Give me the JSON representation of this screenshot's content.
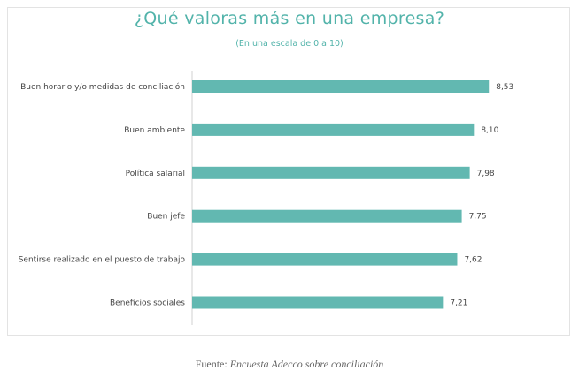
{
  "chart_data": {
    "type": "bar",
    "orientation": "horizontal",
    "title": "¿Qué valoras más en una empresa?",
    "subtitle": "(En una escala de 0 a 10)",
    "categories": [
      "Buen horario y/o medidas de conciliación",
      "Buen ambiente",
      "Política salarial",
      "Buen jefe",
      "Sentirse realizado en el puesto de trabajo",
      "Beneficios sociales"
    ],
    "values": [
      8.53,
      8.1,
      7.98,
      7.75,
      7.62,
      7.21
    ],
    "value_labels": [
      "8,53",
      "8,10",
      "7,98",
      "7,75",
      "7,62",
      "7,21"
    ],
    "xlim": [
      0,
      10
    ],
    "xlabel": "",
    "ylabel": "",
    "grid": false,
    "bar_color": "#62b8b1"
  },
  "colors": {
    "title": "#52b3aa",
    "bar": "#62b8b1"
  },
  "source": {
    "prefix": "Fuente: ",
    "name": "Encuesta Adecco sobre conciliación"
  }
}
